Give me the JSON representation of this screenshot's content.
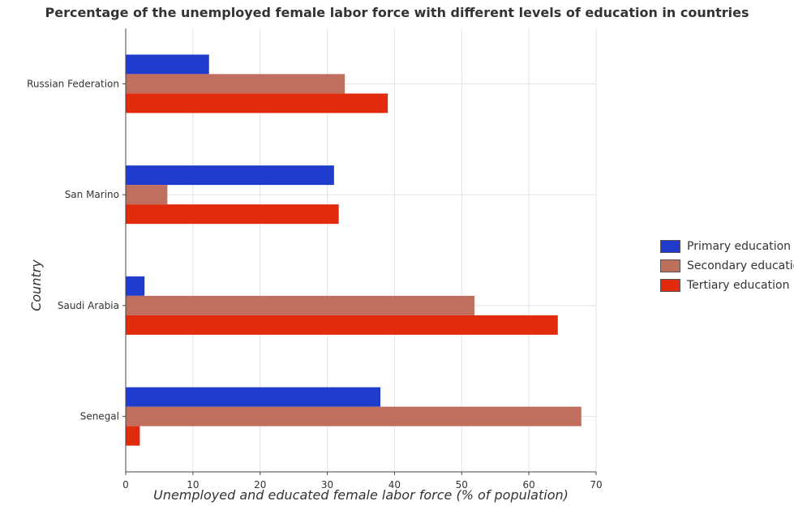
{
  "chart_data": {
    "type": "bar",
    "orientation": "horizontal",
    "title": "Percentage of the unemployed female labor force with different levels of education in countries",
    "xlabel": "Unemployed and educated female labor force (% of population)",
    "ylabel": "Country",
    "categories": [
      "Russian Federation",
      "San Marino",
      "Saudi Arabia",
      "Senegal"
    ],
    "series": [
      {
        "name": "Primary education",
        "color": "#1f3ccc",
        "values": [
          12.4,
          31.0,
          2.8,
          37.9
        ]
      },
      {
        "name": "Secondary education",
        "color": "#c06e5e",
        "values": [
          32.6,
          6.2,
          51.9,
          67.8
        ]
      },
      {
        "name": "Tertiary education",
        "color": "#e02b0f",
        "values": [
          39.0,
          31.7,
          64.3,
          2.1
        ]
      }
    ],
    "xlim": [
      0,
      70
    ],
    "xticks": [
      0,
      10,
      20,
      30,
      40,
      50,
      60,
      70
    ],
    "grid": true,
    "legend_position": "right"
  }
}
